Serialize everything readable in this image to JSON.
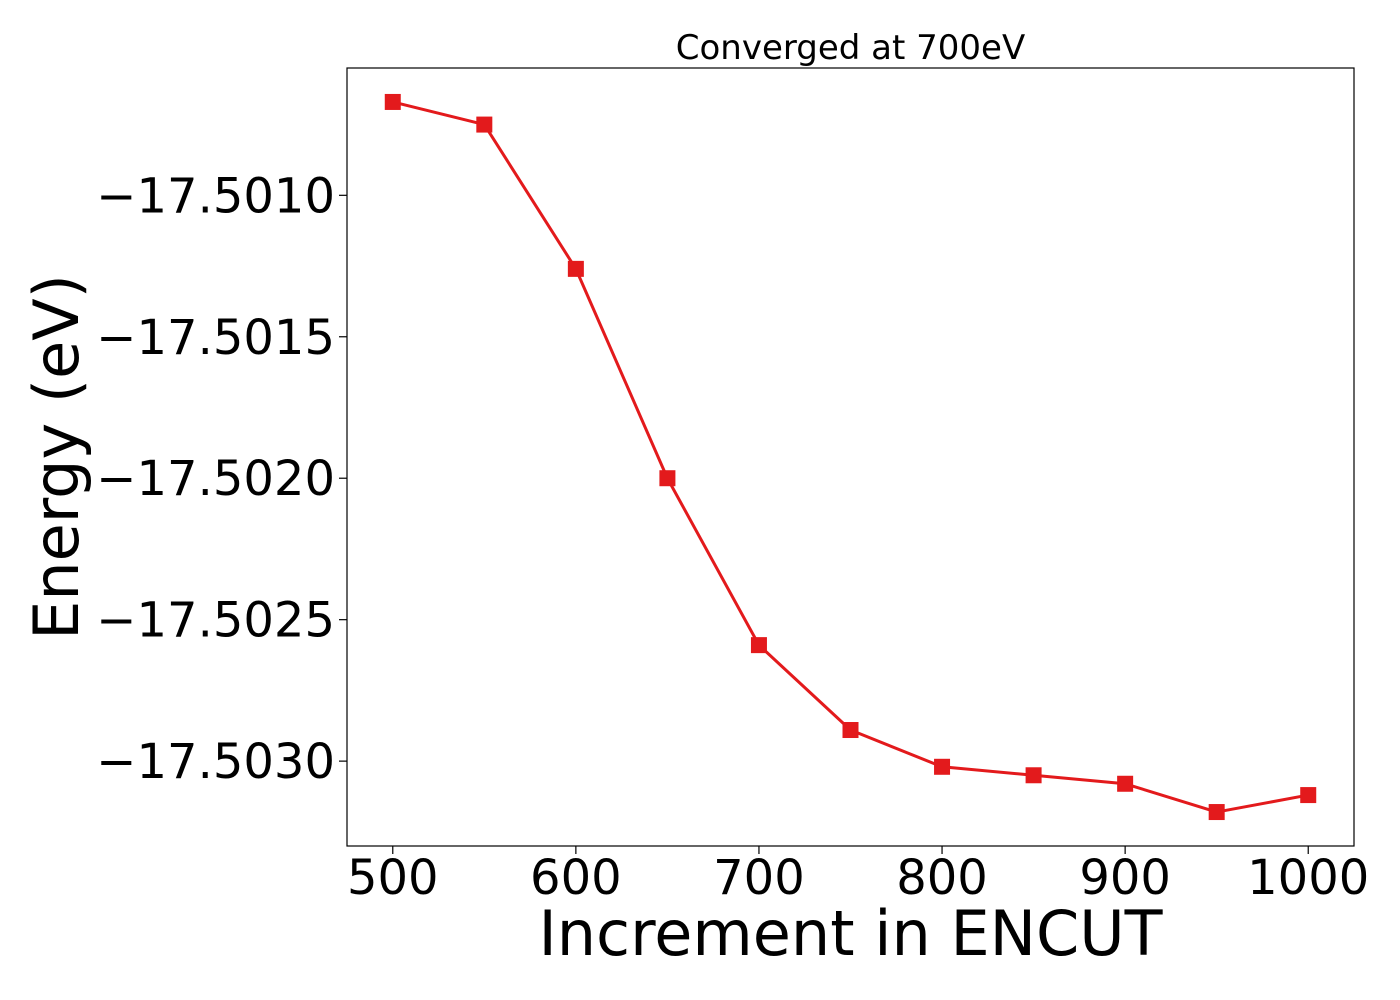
{
  "chart_data": {
    "type": "line",
    "title": "Converged at 700eV",
    "xlabel": "Increment in ENCUT",
    "ylabel": "Energy (eV)",
    "x": [
      500,
      550,
      600,
      650,
      700,
      750,
      800,
      850,
      900,
      950,
      1000
    ],
    "series": [
      {
        "values": [
          -17.50067,
          -17.50075,
          -17.50126,
          -17.502,
          -17.50259,
          -17.50289,
          -17.50302,
          -17.50305,
          -17.50308,
          -17.50318,
          -17.50312
        ],
        "color": "#e31a1c",
        "marker": "square"
      }
    ],
    "xlim": [
      475,
      1025
    ],
    "ylim": [
      -17.5033,
      -17.50055
    ],
    "xticks": [
      500,
      600,
      700,
      800,
      900,
      1000
    ],
    "xtick_labels": [
      "500",
      "600",
      "700",
      "800",
      "900",
      "1000"
    ],
    "yticks": [
      -17.501,
      -17.5015,
      -17.502,
      -17.5025,
      -17.503
    ],
    "ytick_labels": [
      "−17.5010",
      "−17.5015",
      "−17.5020",
      "−17.5025",
      "−17.5030"
    ],
    "grid": false,
    "legend": "none"
  }
}
